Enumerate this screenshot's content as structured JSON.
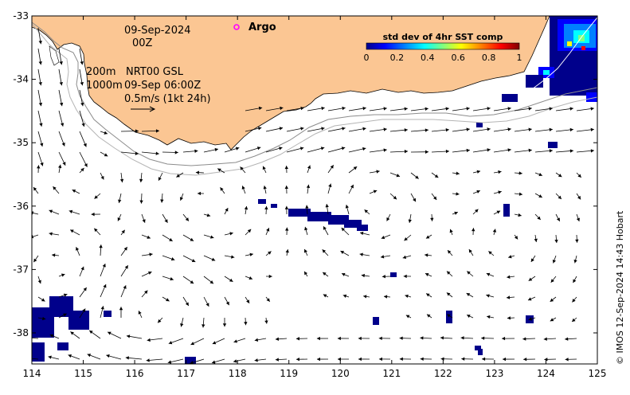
{
  "map": {
    "date_line1": "09-Sep-2024",
    "date_line2": "00Z",
    "argo_label": "Argo",
    "depth_label_1": "200m",
    "depth_label_2": "1000m",
    "product_label": "NRT00 GSL",
    "product_time": "09-Sep 06:00Z",
    "scale_label": "0.5m/s (1kt 24h)",
    "copyright": "© IMOS 12-Sep-2024 14:43 Hobart",
    "colors": {
      "land": "#fbc693",
      "vector": "#000000",
      "isobath_200": "#8c8c8c",
      "isobath_1000": "#b4b4b4",
      "argo_marker": "#ff00ff",
      "low_std": "#00008b"
    }
  },
  "axes": {
    "x_ticks": [
      "114",
      "115",
      "116",
      "117",
      "118",
      "119",
      "120",
      "121",
      "122",
      "123",
      "124",
      "125"
    ],
    "y_ticks": [
      "-33",
      "-34",
      "-35",
      "-36",
      "-37",
      "-38"
    ]
  },
  "colorbar": {
    "title": "std dev of 4hr SST comp",
    "ticks": [
      "0",
      "0.2",
      "0.4",
      "0.6",
      "0.8",
      "1"
    ],
    "colors": [
      "#00008b",
      "#0000ff",
      "#0080ff",
      "#00ffff",
      "#80ff80",
      "#ffff00",
      "#ff8000",
      "#ff0000",
      "#800000"
    ]
  }
}
